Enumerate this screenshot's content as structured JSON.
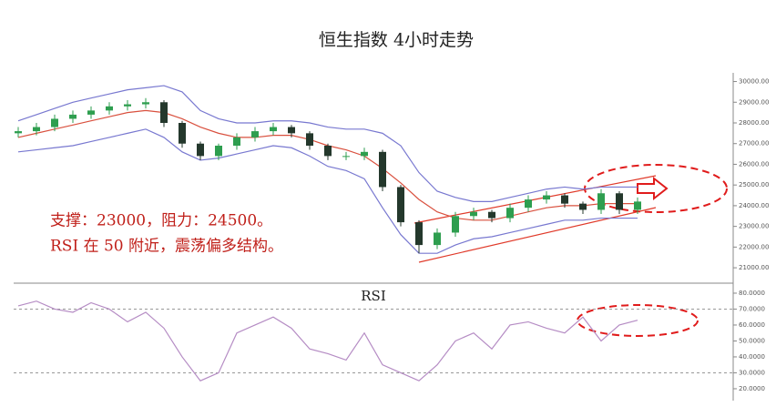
{
  "chart_data": [
    {
      "type": "candlestick",
      "title": "恒生指数 4小时走势",
      "annotations": [
        "支撑：23000，阻力：24500。",
        "RSI 在 50 附近，震荡偏多结构。"
      ],
      "open": [
        27500,
        27600,
        27800,
        28200,
        28400,
        28600,
        28800,
        28900,
        29000,
        28000,
        27000,
        26400,
        26900,
        27300,
        27600,
        27800,
        27500,
        26900,
        26400,
        26400,
        26600,
        24900,
        23200,
        22100,
        22700,
        23500,
        23700,
        23400,
        23900,
        24300,
        24500,
        24100,
        23800,
        24600,
        23800
      ],
      "close": [
        27600,
        27800,
        28200,
        28400,
        28600,
        28800,
        28900,
        29000,
        28000,
        27000,
        26400,
        26900,
        27300,
        27600,
        27800,
        27500,
        26900,
        26400,
        26400,
        26600,
        24900,
        23200,
        22100,
        22700,
        23500,
        23700,
        23400,
        23900,
        24300,
        24500,
        24100,
        23800,
        24600,
        23800,
        24200
      ],
      "high": [
        27800,
        28000,
        28400,
        28600,
        28800,
        29000,
        29100,
        29200,
        29100,
        28100,
        27100,
        27000,
        27500,
        27800,
        28000,
        27900,
        27600,
        27000,
        26600,
        26800,
        26700,
        25000,
        23300,
        22900,
        23700,
        23900,
        23800,
        24100,
        24500,
        24700,
        24600,
        24200,
        24800,
        24700,
        24400
      ],
      "low": [
        27300,
        27400,
        27600,
        28000,
        28200,
        28400,
        28600,
        28700,
        27800,
        26800,
        26200,
        26200,
        26700,
        27100,
        27400,
        27300,
        26700,
        26200,
        26200,
        26200,
        24700,
        23000,
        21700,
        21900,
        22500,
        23300,
        23200,
        23200,
        23700,
        24100,
        23900,
        23600,
        23600,
        23600,
        23600
      ],
      "up_color": "#2e9e4f",
      "down_color": "#24382c",
      "bands": [
        {
          "color": "#7878d0",
          "values": [
            28100,
            28400,
            28700,
            29000,
            29200,
            29400,
            29600,
            29700,
            29800,
            29500,
            28600,
            28200,
            28000,
            28000,
            28100,
            28100,
            28000,
            27800,
            27700,
            27700,
            27500,
            26900,
            25600,
            24700,
            24400,
            24200,
            24200,
            24400,
            24600,
            24800,
            24900,
            24800,
            24900,
            24900,
            24900
          ]
        },
        {
          "color": "#d9503e",
          "values": [
            27300,
            27500,
            27700,
            27900,
            28100,
            28300,
            28500,
            28600,
            28500,
            28200,
            27800,
            27500,
            27300,
            27300,
            27400,
            27400,
            27200,
            26900,
            26700,
            26400,
            25800,
            25100,
            24300,
            23700,
            23400,
            23300,
            23300,
            23500,
            23700,
            23900,
            24000,
            24000,
            24100,
            24100,
            24100
          ]
        },
        {
          "color": "#7878d0",
          "values": [
            26600,
            26700,
            26800,
            26900,
            27100,
            27300,
            27500,
            27700,
            27300,
            26600,
            26200,
            26300,
            26500,
            26700,
            26900,
            26800,
            26400,
            25900,
            25700,
            25300,
            23900,
            22600,
            21700,
            21700,
            22100,
            22400,
            22500,
            22700,
            22900,
            23100,
            23300,
            23300,
            23400,
            23400,
            23400
          ]
        }
      ],
      "ylim": [
        20300,
        30200
      ],
      "yticks": [
        {
          "value": 21000,
          "label": "21000.00"
        },
        {
          "value": 22000,
          "label": "22000.00"
        },
        {
          "value": 23000,
          "label": "23000.00"
        },
        {
          "value": 24000,
          "label": "24000.00"
        },
        {
          "value": 25000,
          "label": "25000.00"
        },
        {
          "value": 26000,
          "label": "26000.00"
        },
        {
          "value": 27000,
          "label": "27000.00"
        },
        {
          "value": 28000,
          "label": "28000.00"
        },
        {
          "value": 29000,
          "label": "29000.00"
        },
        {
          "value": 30000,
          "label": "30000.00"
        }
      ]
    },
    {
      "type": "line",
      "title": "RSI",
      "color": "#b58cc4",
      "values": [
        72,
        75,
        70,
        68,
        74,
        70,
        62,
        68,
        58,
        40,
        25,
        30,
        55,
        60,
        65,
        58,
        45,
        42,
        38,
        55,
        35,
        30,
        25,
        35,
        50,
        55,
        45,
        60,
        62,
        58,
        55,
        65,
        50,
        60,
        63
      ],
      "ref_lines": [
        70,
        30
      ],
      "ylim": [
        15.4,
        85.7
      ],
      "yticks": [
        {
          "value": 20,
          "label": "20.0000"
        },
        {
          "value": 30,
          "label": "30.0000"
        },
        {
          "value": 40,
          "label": "40.0000"
        },
        {
          "value": 50,
          "label": "50.0000"
        },
        {
          "value": 60,
          "label": "60.0000"
        },
        {
          "value": 70,
          "label": "70.0000"
        },
        {
          "value": 80,
          "label": "80.0000"
        }
      ]
    }
  ]
}
